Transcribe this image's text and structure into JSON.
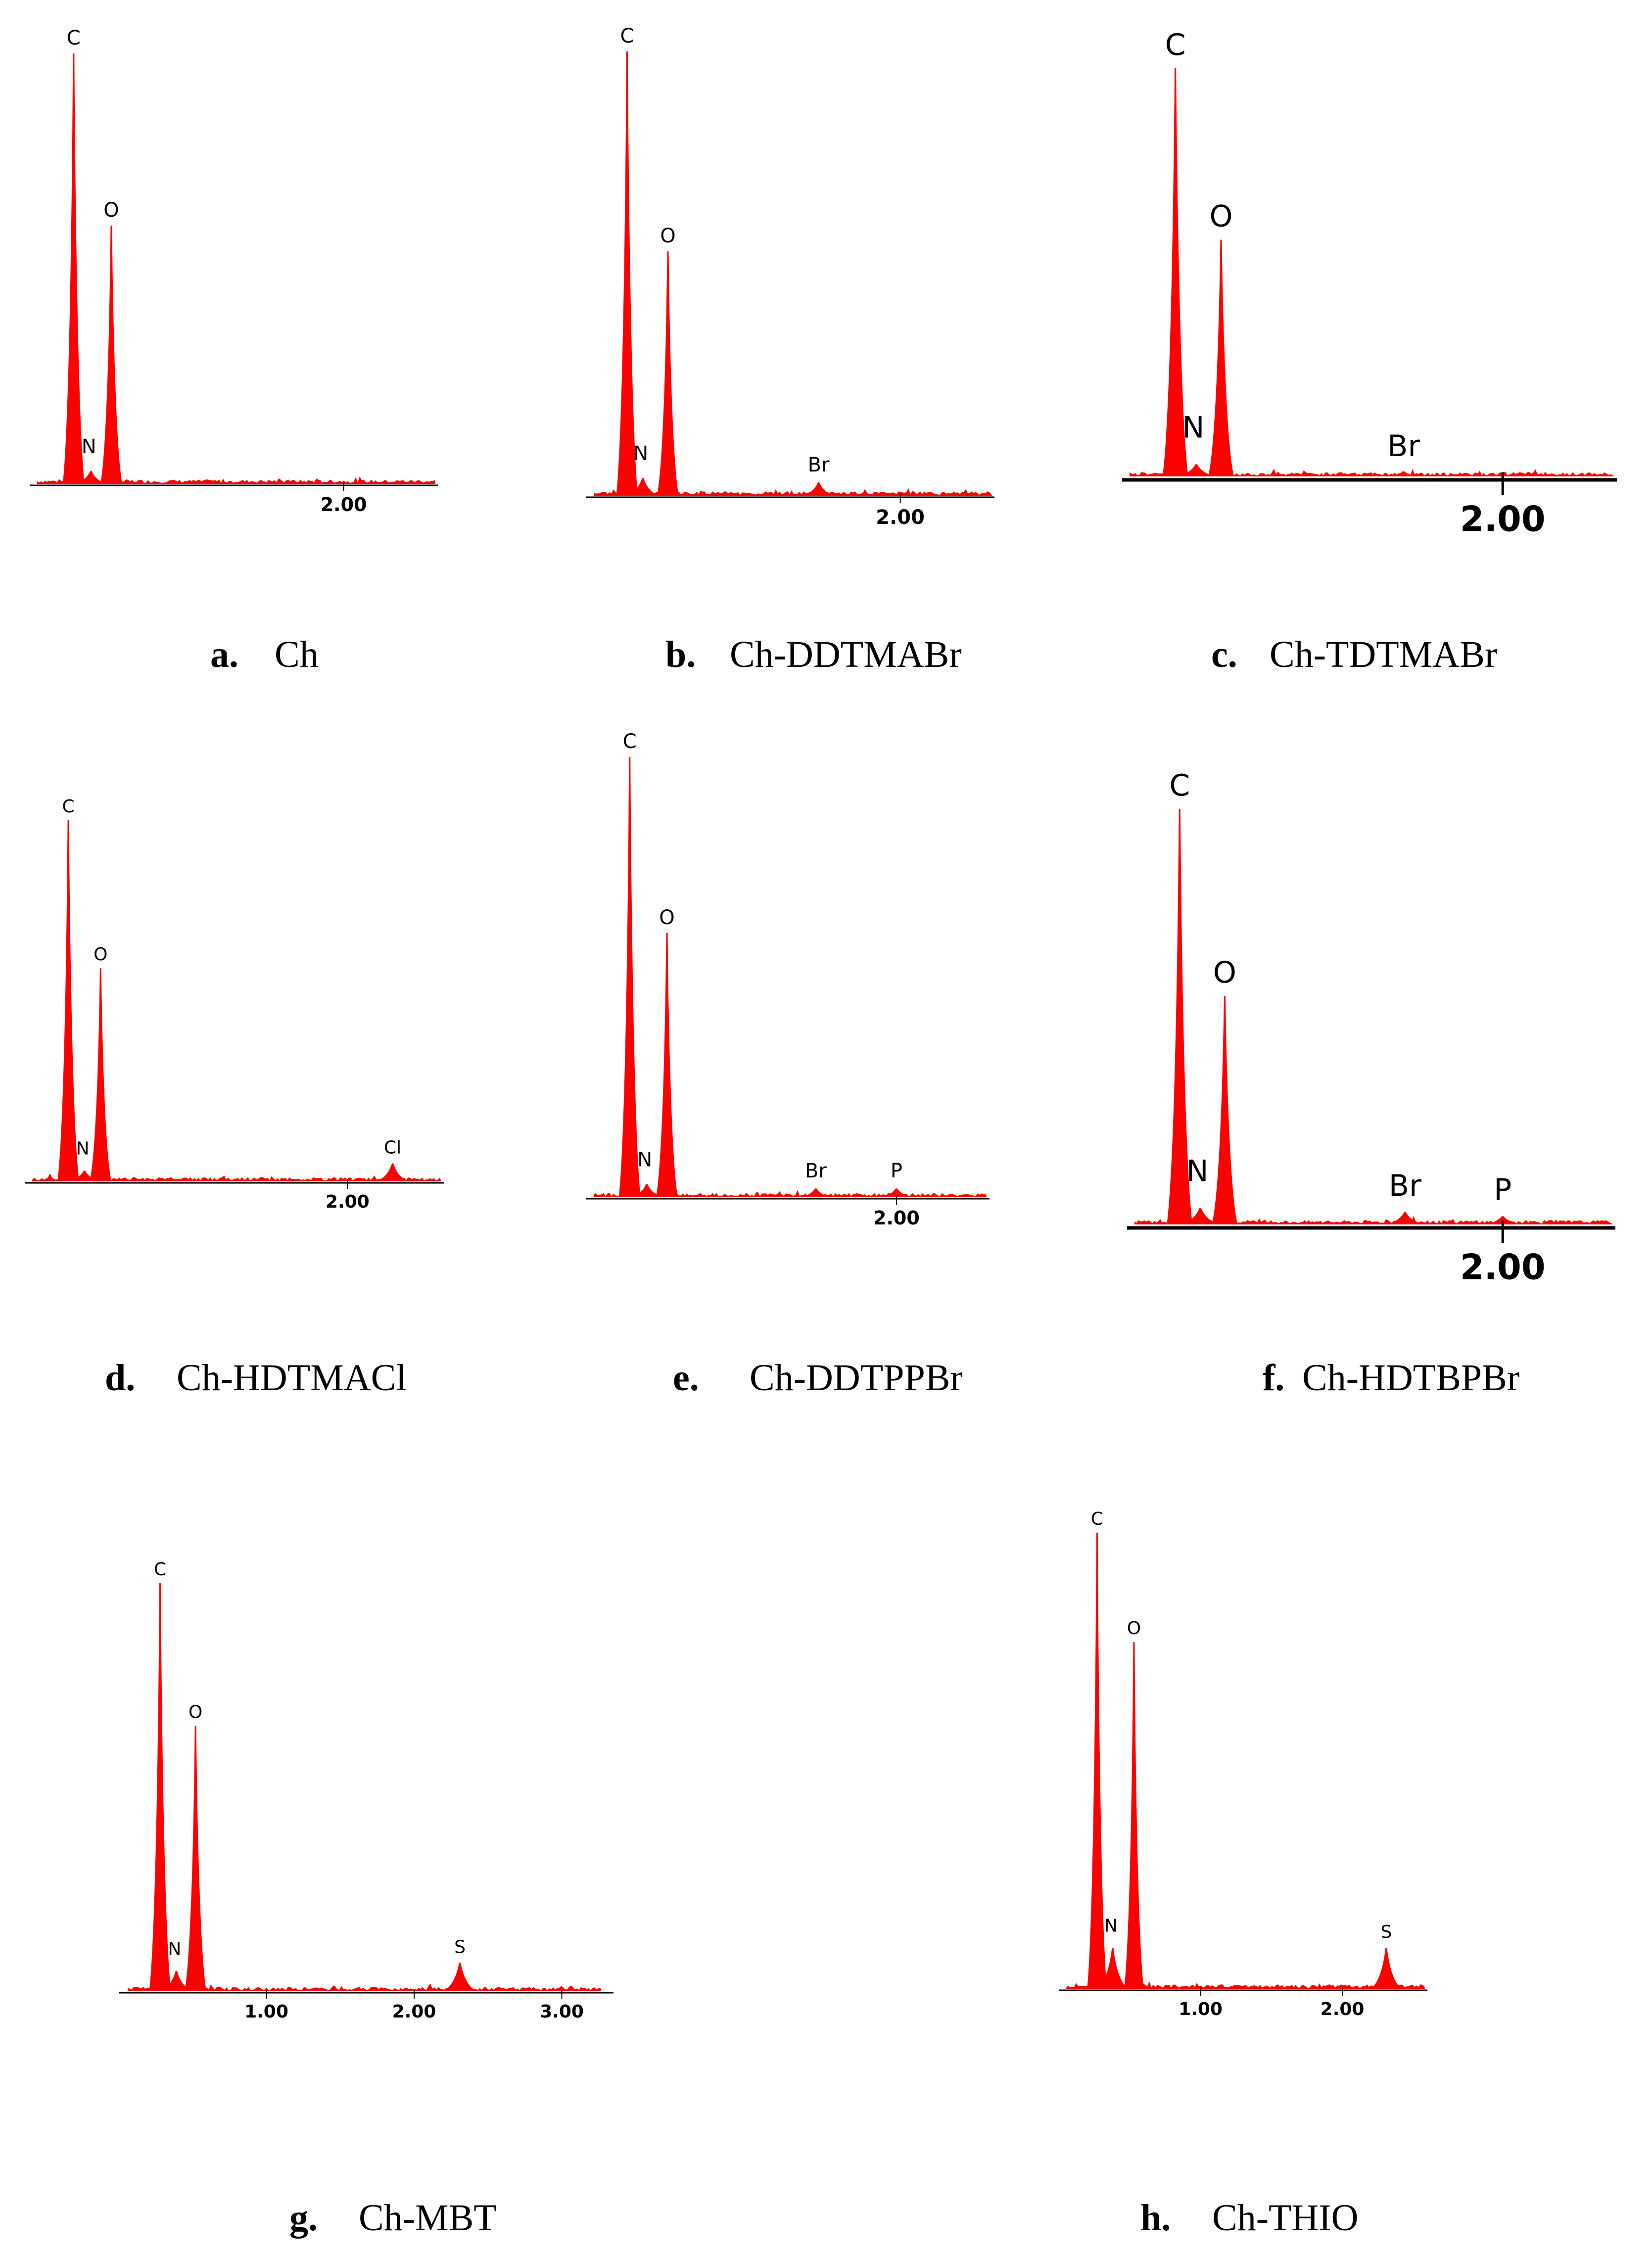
{
  "figure": {
    "color": "#ff0000",
    "axis_color": "#000000",
    "panels": [
      {
        "id": "a",
        "letter": "a.",
        "name": "Ch"
      },
      {
        "id": "b",
        "letter": "b.",
        "name": "Ch-DDTMABr"
      },
      {
        "id": "c",
        "letter": "c.",
        "name": "Ch-TDTMABr"
      },
      {
        "id": "d",
        "letter": "d.",
        "name": "Ch-HDTMACl"
      },
      {
        "id": "e",
        "letter": "e.",
        "name": "Ch-DDTPPBr"
      },
      {
        "id": "f",
        "letter": "f.",
        "name": "Ch-HDTBPBr"
      },
      {
        "id": "g",
        "letter": "g.",
        "name": "Ch-MBT"
      },
      {
        "id": "h",
        "letter": "h.",
        "name": "Ch-THIO"
      }
    ]
  },
  "chart_data": [
    {
      "panel": "a",
      "type": "area",
      "title": "Ch",
      "xlabel": "",
      "ylabel": "",
      "xlim": [
        0.0,
        2.6
      ],
      "ylim": [
        0,
        100
      ],
      "xticks": [
        2.0
      ],
      "tick_labels": [
        "2.00"
      ],
      "peaks": [
        {
          "label": "C",
          "x": 0.28,
          "y": 100
        },
        {
          "label": "N",
          "x": 0.39,
          "y": 3
        },
        {
          "label": "O",
          "x": 0.52,
          "y": 60
        }
      ]
    },
    {
      "panel": "b",
      "type": "area",
      "title": "Ch-DDTMABr",
      "xlabel": "",
      "ylabel": "",
      "xlim": [
        0.0,
        2.6
      ],
      "ylim": [
        0,
        100
      ],
      "xticks": [
        2.0
      ],
      "tick_labels": [
        "2.00"
      ],
      "peaks": [
        {
          "label": "C",
          "x": 0.26,
          "y": 100
        },
        {
          "label": "N",
          "x": 0.36,
          "y": 4
        },
        {
          "label": "O",
          "x": 0.52,
          "y": 55
        },
        {
          "label": "Br",
          "x": 1.48,
          "y": 3
        }
      ]
    },
    {
      "panel": "c",
      "type": "area",
      "title": "Ch-TDTMABr",
      "xlabel": "",
      "ylabel": "",
      "xlim": [
        0.0,
        2.6
      ],
      "ylim": [
        0,
        100
      ],
      "xticks": [
        2.0
      ],
      "tick_labels": [
        "2.00"
      ],
      "peaks": [
        {
          "label": "C",
          "x": 0.28,
          "y": 100
        },
        {
          "label": "N",
          "x": 0.39,
          "y": 3
        },
        {
          "label": "O",
          "x": 0.52,
          "y": 58
        },
        {
          "label": "Br",
          "x": 1.48,
          "y": 1
        }
      ]
    },
    {
      "panel": "d",
      "type": "area",
      "title": "Ch-HDTMACl",
      "xlabel": "",
      "ylabel": "",
      "xlim": [
        0.0,
        2.6
      ],
      "ylim": [
        0,
        100
      ],
      "xticks": [
        2.0
      ],
      "tick_labels": [
        "2.00"
      ],
      "peaks": [
        {
          "label": "C",
          "x": 0.27,
          "y": 100
        },
        {
          "label": "N",
          "x": 0.37,
          "y": 3
        },
        {
          "label": "O",
          "x": 0.47,
          "y": 59
        },
        {
          "label": "Cl",
          "x": 2.28,
          "y": 5
        }
      ]
    },
    {
      "panel": "e",
      "type": "area",
      "title": "Ch-DDTPPBr",
      "xlabel": "",
      "ylabel": "",
      "xlim": [
        0.0,
        2.6
      ],
      "ylim": [
        0,
        100
      ],
      "xticks": [
        2.0
      ],
      "tick_labels": [
        "2.00"
      ],
      "peaks": [
        {
          "label": "C",
          "x": 0.28,
          "y": 100
        },
        {
          "label": "N",
          "x": 0.39,
          "y": 3
        },
        {
          "label": "O",
          "x": 0.52,
          "y": 60
        },
        {
          "label": "Br",
          "x": 1.48,
          "y": 2
        },
        {
          "label": "P",
          "x": 2.0,
          "y": 2
        }
      ]
    },
    {
      "panel": "f",
      "type": "area",
      "title": "Ch-HDTBPBr",
      "xlabel": "",
      "ylabel": "",
      "xlim": [
        0.0,
        2.6
      ],
      "ylim": [
        0,
        100
      ],
      "xticks": [
        2.0
      ],
      "tick_labels": [
        "2.00"
      ],
      "peaks": [
        {
          "label": "C",
          "x": 0.28,
          "y": 100
        },
        {
          "label": "N",
          "x": 0.39,
          "y": 4
        },
        {
          "label": "O",
          "x": 0.52,
          "y": 55
        },
        {
          "label": "Br",
          "x": 1.48,
          "y": 3
        },
        {
          "label": "P",
          "x": 2.0,
          "y": 2
        }
      ]
    },
    {
      "panel": "g",
      "type": "area",
      "title": "Ch-MBT",
      "xlabel": "",
      "ylabel": "",
      "xlim": [
        0.0,
        3.35
      ],
      "ylim": [
        0,
        100
      ],
      "xticks": [
        1.0,
        2.0,
        3.0
      ],
      "tick_labels": [
        "1.00",
        "2.00",
        "3.00"
      ],
      "peaks": [
        {
          "label": "C",
          "x": 0.28,
          "y": 100
        },
        {
          "label": "N",
          "x": 0.39,
          "y": 5
        },
        {
          "label": "O",
          "x": 0.52,
          "y": 65
        },
        {
          "label": "S",
          "x": 2.31,
          "y": 7
        }
      ]
    },
    {
      "panel": "h",
      "type": "area",
      "title": "Ch-THIO",
      "xlabel": "",
      "ylabel": "",
      "xlim": [
        0.0,
        2.6
      ],
      "ylim": [
        0,
        100
      ],
      "xticks": [
        1.0,
        2.0
      ],
      "tick_labels": [
        "1.00",
        "2.00"
      ],
      "peaks": [
        {
          "label": "C",
          "x": 0.27,
          "y": 100
        },
        {
          "label": "N",
          "x": 0.38,
          "y": 9
        },
        {
          "label": "O",
          "x": 0.53,
          "y": 76
        },
        {
          "label": "S",
          "x": 2.31,
          "y": 9
        }
      ]
    }
  ]
}
